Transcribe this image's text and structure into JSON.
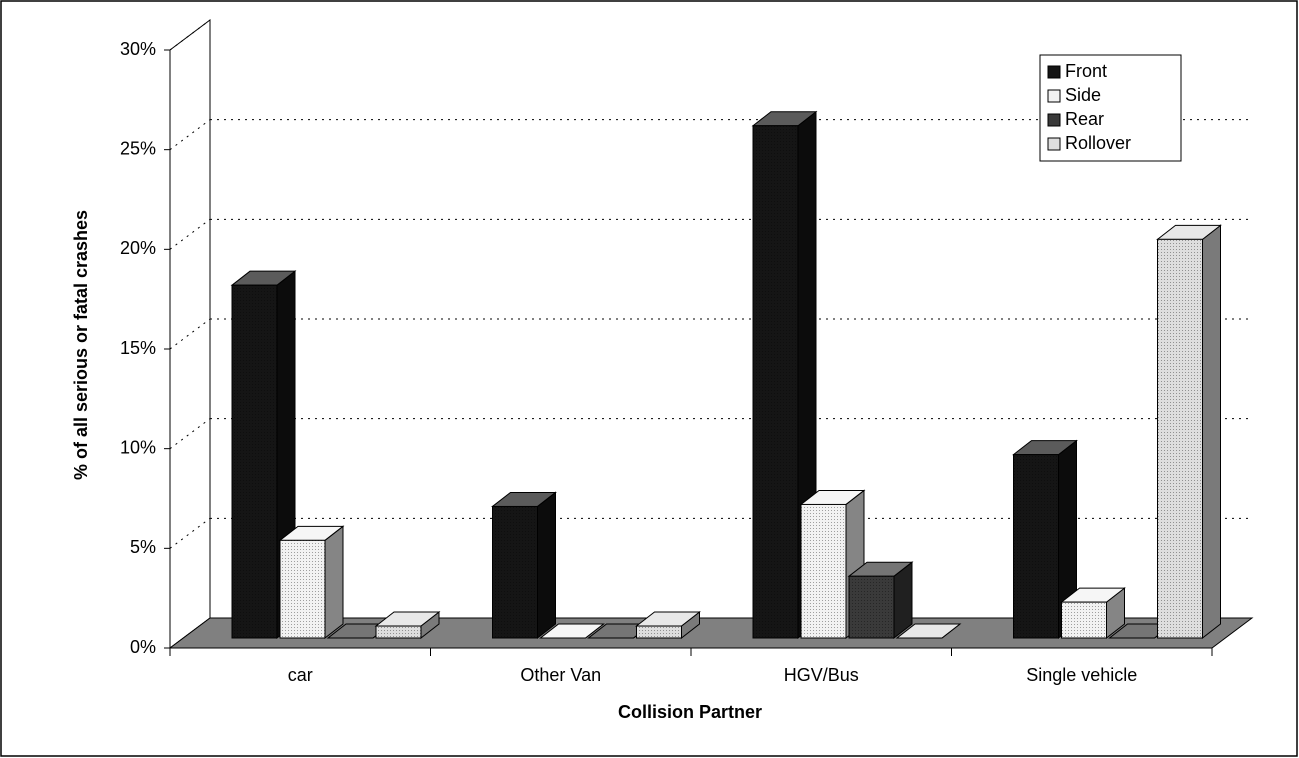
{
  "chart_data": {
    "type": "bar3d",
    "x_label": "Collision Partner",
    "y_label": "% of all serious or fatal crashes",
    "categories": [
      "car",
      "Other Van",
      "HGV/Bus",
      "Single vehicle"
    ],
    "series": [
      {
        "name": "Front",
        "color": "#151515",
        "values": [
          17.7,
          6.6,
          25.7,
          9.2
        ]
      },
      {
        "name": "Side",
        "color": "#f2f2f2",
        "values": [
          4.9,
          0,
          6.7,
          1.8
        ]
      },
      {
        "name": "Rear",
        "color": "#3a3a3a",
        "values": [
          0,
          0,
          3.1,
          0
        ]
      },
      {
        "name": "Rollover",
        "color": "#dedede",
        "values": [
          0.6,
          0.6,
          0,
          20.0
        ]
      }
    ],
    "ylim": [
      0,
      30
    ],
    "yticks": [
      {
        "value": 0,
        "label": "0%"
      },
      {
        "value": 5,
        "label": "5%"
      },
      {
        "value": 10,
        "label": "10%"
      },
      {
        "value": 15,
        "label": "15%"
      },
      {
        "value": 20,
        "label": "20%"
      },
      {
        "value": 25,
        "label": "25%"
      },
      {
        "value": 30,
        "label": "30%"
      }
    ],
    "grid": true,
    "legend": "upper right"
  }
}
